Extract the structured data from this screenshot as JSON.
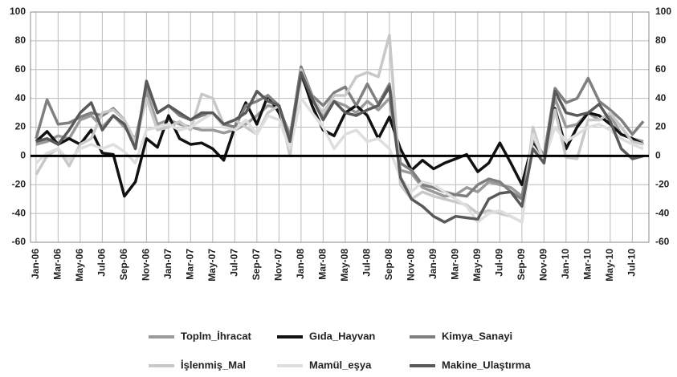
{
  "chart_data": {
    "type": "line",
    "categories": [
      "Jan-06",
      null,
      "Mar-06",
      null,
      "May-06",
      null,
      "Jul-06",
      null,
      "Sep-06",
      null,
      "Nov-06",
      null,
      "Jan-07",
      null,
      "Mar-07",
      null,
      "May-07",
      null,
      "Jul-07",
      null,
      "Sep-07",
      null,
      "Nov-07",
      null,
      "Jan-08",
      null,
      "Mar-08",
      null,
      "May-08",
      null,
      "Jul-08",
      null,
      "Sep-08",
      null,
      "Nov-08",
      null,
      "Jan-09",
      null,
      "Mar-09",
      null,
      "May-09",
      null,
      "Jul-09",
      null,
      "Sep-09",
      null,
      "Nov-09",
      null,
      "Jan-10",
      null,
      "Mar-10",
      null,
      "May-10",
      null,
      "Jul-10",
      null
    ],
    "series": [
      {
        "name": "Toplm_İhracat",
        "color": "#9a9a9a",
        "values": [
          8,
          10,
          14,
          12,
          25,
          28,
          20,
          28,
          20,
          12,
          45,
          22,
          25,
          22,
          20,
          18,
          18,
          16,
          18,
          22,
          28,
          35,
          33,
          15,
          55,
          40,
          28,
          38,
          35,
          30,
          38,
          32,
          40,
          -10,
          -12,
          -22,
          -25,
          -28,
          -27,
          -22,
          -25,
          -18,
          -20,
          -22,
          -28,
          10,
          -2,
          40,
          20,
          22,
          30,
          25,
          28,
          15,
          12,
          10
        ]
      },
      {
        "name": "Gıda_Hayvan",
        "color": "#111111",
        "values": [
          10,
          17,
          8,
          12,
          8,
          18,
          2,
          1,
          -28,
          -18,
          12,
          6,
          28,
          12,
          8,
          9,
          5,
          -3,
          20,
          37,
          22,
          42,
          30,
          12,
          58,
          35,
          18,
          14,
          30,
          35,
          28,
          12,
          27,
          5,
          -10,
          -3,
          -9,
          -5,
          -2,
          1,
          -11,
          -5,
          9,
          -5,
          -20,
          10,
          0,
          33,
          5,
          20,
          30,
          28,
          22,
          15,
          12,
          8
        ]
      },
      {
        "name": "Kimya_Sanayi",
        "color": "#7f7f7f",
        "values": [
          12,
          39,
          22,
          23,
          27,
          30,
          28,
          33,
          25,
          5,
          50,
          30,
          35,
          28,
          25,
          28,
          30,
          22,
          20,
          35,
          38,
          42,
          35,
          12,
          62,
          42,
          35,
          44,
          48,
          35,
          50,
          36,
          50,
          -5,
          -10,
          -20,
          -22,
          -25,
          -27,
          -28,
          -20,
          -16,
          -18,
          -25,
          -30,
          12,
          0,
          47,
          37,
          40,
          54,
          38,
          32,
          25,
          15,
          24
        ]
      },
      {
        "name": "İşlenmiş_Mal",
        "color": "#c8c8c8",
        "values": [
          -13,
          0,
          5,
          -7,
          8,
          12,
          30,
          32,
          25,
          10,
          40,
          18,
          20,
          24,
          18,
          43,
          40,
          22,
          25,
          20,
          15,
          30,
          35,
          0,
          60,
          40,
          30,
          42,
          42,
          55,
          58,
          55,
          84,
          -20,
          -30,
          -25,
          -28,
          -30,
          -32,
          -34,
          -40,
          -38,
          -40,
          -42,
          -46,
          20,
          -5,
          32,
          -1,
          -2,
          25,
          25,
          30,
          20,
          10,
          8
        ]
      },
      {
        "name": "Mamül_eşya",
        "color": "#dedede",
        "values": [
          -5,
          2,
          5,
          -3,
          5,
          8,
          5,
          8,
          3,
          -5,
          18,
          20,
          22,
          18,
          20,
          25,
          30,
          20,
          18,
          25,
          15,
          28,
          25,
          5,
          40,
          30,
          20,
          5,
          15,
          18,
          10,
          12,
          5,
          -15,
          -25,
          -18,
          -20,
          -25,
          -30,
          -35,
          -46,
          -40,
          -38,
          -42,
          -46,
          15,
          -3,
          20,
          10,
          15,
          20,
          22,
          18,
          12,
          8,
          5
        ]
      },
      {
        "name": "Makine_Ulaştırma",
        "color": "#595959",
        "values": [
          10,
          12,
          8,
          18,
          30,
          37,
          18,
          28,
          22,
          5,
          52,
          30,
          35,
          30,
          25,
          30,
          30,
          22,
          25,
          30,
          45,
          38,
          35,
          10,
          58,
          40,
          25,
          38,
          30,
          28,
          32,
          35,
          48,
          -15,
          -30,
          -35,
          -42,
          -46,
          -42,
          -43,
          -44,
          -30,
          -26,
          -25,
          -35,
          5,
          -5,
          45,
          30,
          28,
          30,
          36,
          24,
          5,
          -2,
          0
        ]
      }
    ],
    "ylim": [
      -60,
      100
    ],
    "yticks": [
      -60,
      -40,
      -20,
      0,
      20,
      40,
      60,
      80,
      100
    ],
    "y2lim": [
      -60,
      100
    ],
    "y2ticks": [
      -60,
      -40,
      -20,
      0,
      20,
      40,
      60,
      80,
      100
    ],
    "grid": true,
    "legend": "bottom"
  }
}
